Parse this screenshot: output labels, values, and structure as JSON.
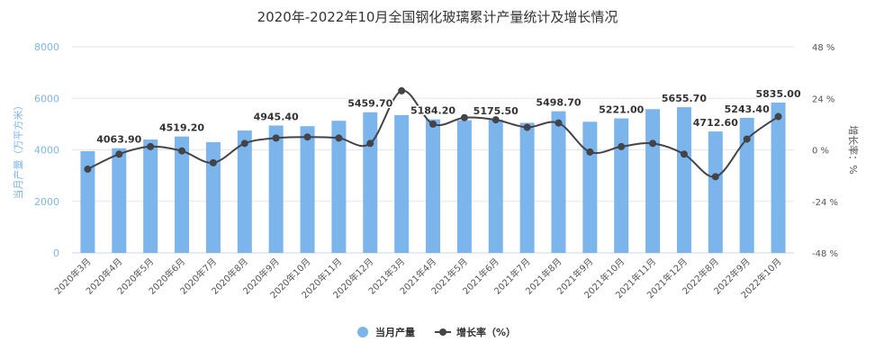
{
  "chart_data": {
    "type": "bar+line",
    "title": "2020年-2022年10月全国钢化玻璃累计产量统计及增长情况",
    "categories": [
      "2020年3月",
      "2020年4月",
      "2020年5月",
      "2020年6月",
      "2020年7月",
      "2020年8月",
      "2020年9月",
      "2020年10月",
      "2020年11月",
      "2020年12月",
      "2021年3月",
      "2021年4月",
      "2021年5月",
      "2021年6月",
      "2021年7月",
      "2021年8月",
      "2021年9月",
      "2021年10月",
      "2021年11月",
      "2021年12月",
      "2022年8月",
      "2022年9月",
      "2022年10月"
    ],
    "series": [
      {
        "name": "当月产量",
        "type": "bar",
        "axis": "left",
        "color": "#7cb5ec",
        "values": [
          3950,
          4063.9,
          4400,
          4519.2,
          4300,
          4750,
          4945.4,
          4920,
          5130,
          5459.7,
          5350,
          5184.2,
          5150,
          5175.5,
          5050,
          5498.7,
          5090,
          5221.0,
          5580,
          5655.7,
          4712.6,
          5243.4,
          5835.0
        ],
        "data_labels": [
          null,
          "4063.90",
          null,
          "4519.20",
          null,
          null,
          "4945.40",
          null,
          null,
          "5459.70",
          null,
          "5184.20",
          null,
          "5175.50",
          null,
          "5498.70",
          null,
          "5221.00",
          null,
          "5655.70",
          "4712.60",
          "5243.40",
          "5835.00"
        ]
      },
      {
        "name": "增长率（%）",
        "type": "line",
        "axis": "right",
        "color": "#434348",
        "values": [
          -9.0,
          -2.0,
          1.5,
          -0.5,
          -6.0,
          3.0,
          5.5,
          6.0,
          5.5,
          3.0,
          27.5,
          12.0,
          15.0,
          14.0,
          10.5,
          12.5,
          -1.0,
          1.5,
          3.0,
          -2.0,
          -12.5,
          5.0,
          15.5
        ]
      }
    ],
    "y_left": {
      "label": "当月产量（万平方米）",
      "ylim": [
        0,
        8000
      ],
      "ticks": [
        "0",
        "2000",
        "4000",
        "6000",
        "8000"
      ]
    },
    "y_right": {
      "label": "增长率：%",
      "ylim": [
        -48,
        48
      ],
      "ticks": [
        "-48 %",
        "-24 %",
        "0 %",
        "24 %",
        "48 %"
      ]
    },
    "grid": true,
    "legend_position": "bottom"
  }
}
